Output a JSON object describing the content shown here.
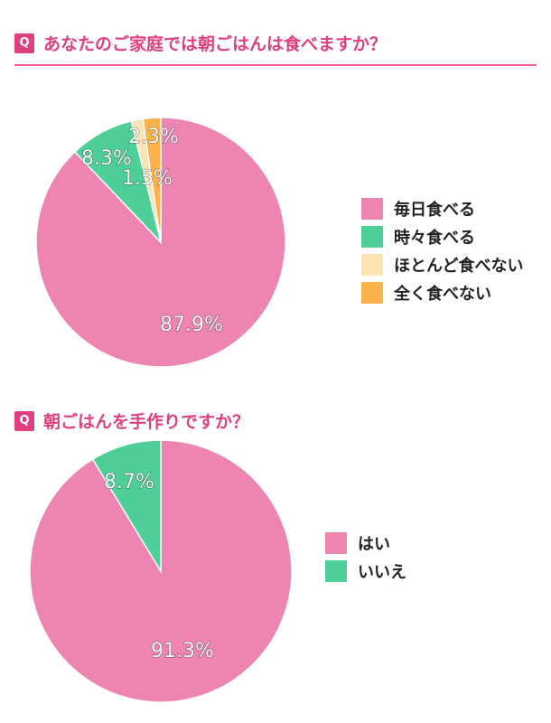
{
  "questions": [
    {
      "badge": "Q",
      "text": "あなたのご家庭では朝ごはんは食べますか？"
    },
    {
      "badge": "Q",
      "text": "朝ごはんを手作りですか？"
    }
  ],
  "colors": {
    "accent": "#e0407f",
    "pink": "#ee84b1",
    "green": "#4fcf98",
    "cream": "#fbe3b3",
    "orange": "#fbb24b"
  },
  "chart_data": [
    {
      "type": "pie",
      "title": "あなたのご家庭では朝ごはんは食べますか？",
      "categories": [
        "毎日食べる",
        "時々食べる",
        "ほとんど食べない",
        "全く食べない"
      ],
      "values": [
        87.9,
        8.3,
        1.5,
        2.3
      ],
      "labels": [
        "87.9%",
        "8.3%",
        "1.5%",
        "2.3%"
      ],
      "colors": [
        "#ee84b1",
        "#4fcf98",
        "#fbe3b3",
        "#fbb24b"
      ],
      "legend": "right"
    },
    {
      "type": "pie",
      "title": "朝ごはんを手作りですか？",
      "categories": [
        "はい",
        "いいえ"
      ],
      "values": [
        91.3,
        8.7
      ],
      "labels": [
        "91.3%",
        "8.7%"
      ],
      "colors": [
        "#ee84b1",
        "#4fcf98"
      ],
      "legend": "right"
    }
  ]
}
